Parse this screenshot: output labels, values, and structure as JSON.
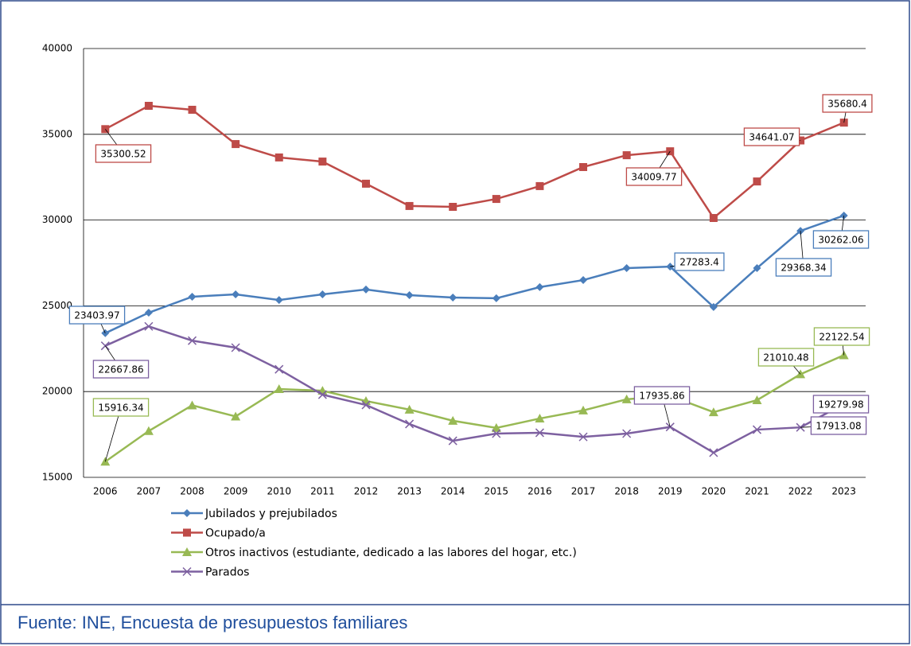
{
  "chart_data": {
    "type": "line",
    "categories": [
      "2006",
      "2007",
      "2008",
      "2009",
      "2010",
      "2011",
      "2012",
      "2013",
      "2014",
      "2015",
      "2016",
      "2017",
      "2018",
      "2019",
      "2020",
      "2021",
      "2022",
      "2023"
    ],
    "series": [
      {
        "name": "Jubilados y prejubilados",
        "color": "#4a7ebb",
        "marker": "diamond",
        "values": [
          23403.97,
          24600,
          25530,
          25670,
          25340,
          25670,
          25950,
          25620,
          25480,
          25440,
          26090,
          26500,
          27200,
          27283.4,
          24930,
          27200,
          29368.34,
          30262.06
        ],
        "value_labels": [
          "23403.97",
          null,
          null,
          null,
          null,
          null,
          null,
          null,
          null,
          null,
          null,
          null,
          null,
          "27283.4",
          null,
          null,
          "29368.34",
          "30262.06"
        ]
      },
      {
        "name": "Ocupado/a",
        "color": "#be4b48",
        "marker": "square",
        "values": [
          35300.52,
          36660,
          36430,
          34430,
          33650,
          33410,
          32120,
          30820,
          30770,
          31230,
          31980,
          33090,
          33780,
          34009.77,
          30120,
          32250,
          34641.07,
          35680.4
        ],
        "value_labels": [
          "35300.52",
          null,
          null,
          null,
          null,
          null,
          null,
          null,
          null,
          null,
          null,
          null,
          null,
          "34009.77",
          null,
          null,
          "34641.07",
          "35680.4"
        ]
      },
      {
        "name": "Otros inactivos (estudiante, dedicado a las labores del hogar, etc.)",
        "color": "#98b954",
        "marker": "triangle",
        "values": [
          15916.34,
          17700,
          19200,
          18550,
          20150,
          20050,
          19450,
          18950,
          18300,
          17880,
          18430,
          18900,
          19550,
          19750,
          18800,
          19500,
          21010.48,
          22122.54
        ],
        "value_labels": [
          "15916.34",
          null,
          null,
          null,
          null,
          null,
          null,
          null,
          null,
          null,
          null,
          null,
          null,
          null,
          null,
          null,
          "21010.48",
          "22122.54"
        ]
      },
      {
        "name": "Parados",
        "color": "#7d60a0",
        "marker": "x",
        "values": [
          22667.86,
          23800,
          22970,
          22560,
          21300,
          19820,
          19220,
          18110,
          17130,
          17550,
          17600,
          17360,
          17550,
          17935.86,
          16440,
          17780,
          17913.08,
          19279.98
        ],
        "value_labels": [
          "22667.86",
          null,
          null,
          null,
          null,
          null,
          null,
          null,
          null,
          null,
          null,
          null,
          null,
          "17935.86",
          null,
          null,
          "17913.08",
          "19279.98"
        ]
      }
    ],
    "ylim": [
      15000,
      40000
    ],
    "yticks": [
      15000,
      20000,
      25000,
      30000,
      35000,
      40000
    ],
    "grid": true,
    "legend": "bottom-left",
    "source": "Fuente: INE, Encuesta de presupuestos familiares"
  }
}
